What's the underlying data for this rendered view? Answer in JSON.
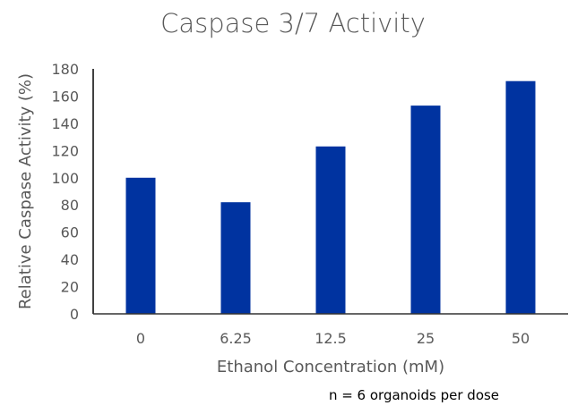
{
  "chart_data": {
    "type": "bar",
    "title": "Caspase 3/7 Activity",
    "xlabel": "Ethanol Concentration (mM)",
    "ylabel": "Relative Caspase Activity (%)",
    "categories": [
      "0",
      "6.25",
      "12.5",
      "25",
      "50"
    ],
    "values": [
      100,
      82,
      123,
      153,
      171
    ],
    "ylim": [
      0,
      180
    ],
    "yticks": [
      "0",
      "20",
      "40",
      "60",
      "80",
      "100",
      "120",
      "140",
      "160",
      "180"
    ],
    "grid": false,
    "bar_color": "#0033a0",
    "annotation": "n = 6 organoids per dose"
  }
}
